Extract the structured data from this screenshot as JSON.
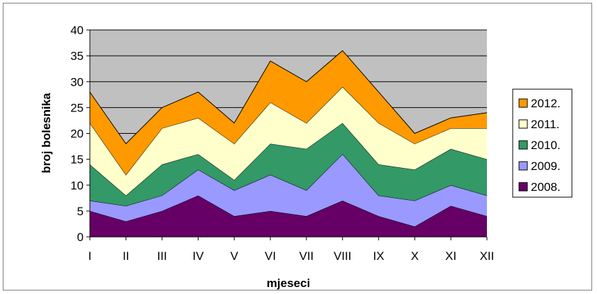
{
  "chart_data": {
    "type": "area",
    "stacked": true,
    "categories": [
      "I",
      "II",
      "III",
      "IV",
      "V",
      "VI",
      "VII",
      "VIII",
      "IX",
      "X",
      "XI",
      "XII"
    ],
    "series": [
      {
        "name": "2008.",
        "color": "#660066",
        "values": [
          5,
          3,
          5,
          8,
          4,
          5,
          4,
          7,
          4,
          2,
          6,
          4
        ]
      },
      {
        "name": "2009.",
        "color": "#9999FF",
        "values": [
          2,
          3,
          3,
          5,
          5,
          7,
          5,
          9,
          4,
          5,
          4,
          4
        ]
      },
      {
        "name": "2010.",
        "color": "#339966",
        "values": [
          7,
          2,
          6,
          3,
          2,
          6,
          8,
          6,
          6,
          6,
          7,
          7
        ]
      },
      {
        "name": "2011.",
        "color": "#FFFFCC",
        "values": [
          8,
          4,
          7,
          7,
          7,
          8,
          5,
          7,
          8,
          5,
          4,
          6
        ]
      },
      {
        "name": "2012.",
        "color": "#FF9900",
        "values": [
          6,
          6,
          4,
          5,
          4,
          8,
          8,
          7,
          6,
          2,
          2,
          3
        ]
      }
    ],
    "title": "",
    "xlabel": "mjeseci",
    "ylabel": "broj bolesnika",
    "ylim": [
      0,
      40
    ],
    "yticks": [
      0,
      5,
      10,
      15,
      20,
      25,
      30,
      35,
      40
    ],
    "plot_background": "#C0C0C0",
    "grid": true,
    "legend_position": "right"
  }
}
